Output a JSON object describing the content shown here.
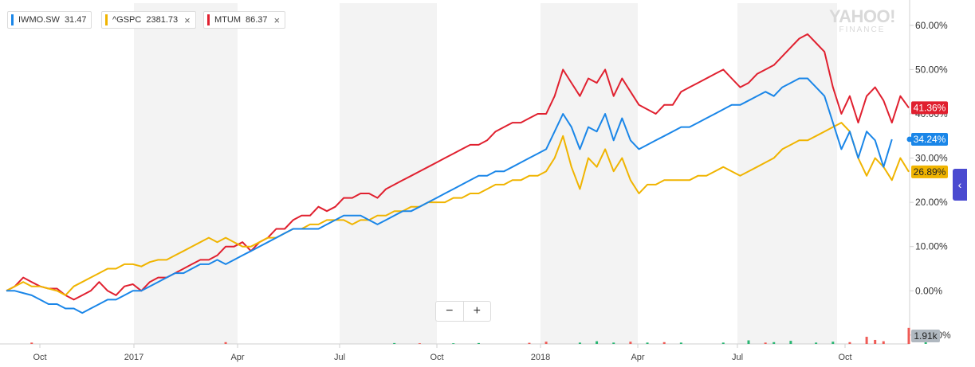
{
  "legend": [
    {
      "symbol": "IWMO.SW",
      "value": "31.47",
      "color": "#1a86e8",
      "closable": false
    },
    {
      "symbol": "^GSPC",
      "value": "2381.73",
      "color": "#f0b400",
      "closable": true
    },
    {
      "symbol": "MTUM",
      "value": "86.37",
      "color": "#e0202f",
      "closable": true
    }
  ],
  "watermark": {
    "line1": "YAHOO!",
    "line2": "FINANCE"
  },
  "zoom": {
    "minus": "−",
    "plus": "+"
  },
  "side_tab_icon": "chevron-left-icon",
  "side_tab_glyph": "‹",
  "chart_data": {
    "type": "line",
    "y_unit": "%",
    "ylim": [
      -12,
      65
    ],
    "y_ticks": [
      "60.00%",
      "50.00%",
      "40.00%",
      "30.00%",
      "20.00%",
      "10.00%",
      "0.00%",
      "-10.00%"
    ],
    "x_labels": [
      "Oct",
      "2017",
      "Apr",
      "Jul",
      "Oct",
      "2018",
      "Apr",
      "Jul",
      "Oct"
    ],
    "volume_label": "1.91k",
    "series": [
      {
        "name": "MTUM",
        "color": "#e0202f",
        "last_label": "41.36%",
        "values": [
          0,
          1,
          3,
          2,
          1,
          0.5,
          0.5,
          -1,
          -2,
          -1,
          0,
          2,
          0,
          -1,
          1,
          1.5,
          0,
          2,
          3,
          3,
          4,
          5,
          6,
          7,
          7,
          8,
          10,
          10,
          11,
          9,
          11,
          12,
          14,
          14,
          16,
          17,
          17,
          19,
          18,
          19,
          21,
          21,
          22,
          22,
          21,
          23,
          24,
          25,
          26,
          27,
          28,
          29,
          30,
          31,
          32,
          33,
          33,
          34,
          36,
          37,
          38,
          38,
          39,
          40,
          40,
          44,
          50,
          47,
          44,
          48,
          47,
          50,
          44,
          48,
          45,
          42,
          41,
          40,
          42,
          42,
          45,
          46,
          47,
          48,
          49,
          50,
          48,
          46,
          47,
          49,
          50,
          51,
          53,
          55,
          57,
          58,
          56,
          54,
          46,
          40,
          44,
          38,
          44,
          46,
          43,
          38,
          44,
          41.36
        ]
      },
      {
        "name": "^GSPC",
        "color": "#f0b400",
        "last_label": "26.89%",
        "values": [
          0,
          1,
          2,
          1,
          1,
          0.5,
          0,
          -1,
          1,
          2,
          3,
          4,
          5,
          5,
          6,
          6,
          5.5,
          6.5,
          7,
          7,
          8,
          9,
          10,
          11,
          12,
          11,
          12,
          11,
          10,
          10,
          11,
          12,
          12,
          13,
          14,
          14,
          15,
          15,
          16,
          16,
          16,
          15,
          16,
          16,
          17,
          17,
          18,
          18,
          19,
          19,
          20,
          20,
          20,
          21,
          21,
          22,
          22,
          23,
          24,
          24,
          25,
          25,
          26,
          26,
          27,
          30,
          35,
          28,
          23,
          30,
          28,
          32,
          27,
          30,
          25,
          22,
          24,
          24,
          25,
          25,
          25,
          25,
          26,
          26,
          27,
          28,
          27,
          26,
          27,
          28,
          29,
          30,
          32,
          33,
          34,
          34,
          35,
          36,
          37,
          38,
          36,
          30,
          26,
          30,
          28,
          25,
          30,
          26.89
        ]
      },
      {
        "name": "IWMO.SW",
        "color": "#1a86e8",
        "last_label": "34.24%",
        "values": [
          0,
          0,
          -0.5,
          -1,
          -2,
          -3,
          -3,
          -4,
          -4,
          -5,
          -4,
          -3,
          -2,
          -2,
          -1,
          0,
          0,
          1,
          2,
          3,
          4,
          4,
          5,
          6,
          6,
          7,
          6,
          7,
          8,
          9,
          10,
          11,
          12,
          13,
          14,
          14,
          14,
          14,
          15,
          16,
          17,
          17,
          17,
          16,
          15,
          16,
          17,
          18,
          18,
          19,
          20,
          21,
          22,
          23,
          24,
          25,
          26,
          26,
          27,
          27,
          28,
          29,
          30,
          31,
          32,
          36,
          40,
          37,
          32,
          37,
          36,
          40,
          34,
          39,
          34,
          32,
          33,
          34,
          35,
          36,
          37,
          37,
          38,
          39,
          40,
          41,
          42,
          42,
          43,
          44,
          45,
          44,
          46,
          47,
          48,
          48,
          46,
          44,
          38,
          32,
          36,
          30,
          36,
          34,
          28,
          34.24
        ]
      }
    ],
    "volume_bars": [
      {
        "i": 3,
        "h": 0.3,
        "c": "#ef5b56"
      },
      {
        "i": 26,
        "h": 0.4,
        "c": "#ef5b56"
      },
      {
        "i": 46,
        "h": 0.2,
        "c": "#2bb673"
      },
      {
        "i": 49,
        "h": 0.15,
        "c": "#ef5b56"
      },
      {
        "i": 53,
        "h": 0.15,
        "c": "#2bb673"
      },
      {
        "i": 56,
        "h": 0.2,
        "c": "#2bb673"
      },
      {
        "i": 62,
        "h": 0.25,
        "c": "#ef5b56"
      },
      {
        "i": 64,
        "h": 0.5,
        "c": "#ef5b56"
      },
      {
        "i": 68,
        "h": 0.3,
        "c": "#2bb673"
      },
      {
        "i": 70,
        "h": 0.6,
        "c": "#2bb673"
      },
      {
        "i": 72,
        "h": 0.3,
        "c": "#2bb673"
      },
      {
        "i": 74,
        "h": 0.5,
        "c": "#ef5b56"
      },
      {
        "i": 76,
        "h": 0.3,
        "c": "#2bb673"
      },
      {
        "i": 78,
        "h": 0.4,
        "c": "#ef5b56"
      },
      {
        "i": 80,
        "h": 0.3,
        "c": "#2bb673"
      },
      {
        "i": 85,
        "h": 0.3,
        "c": "#2bb673"
      },
      {
        "i": 88,
        "h": 0.8,
        "c": "#2bb673"
      },
      {
        "i": 90,
        "h": 0.3,
        "c": "#ef5b56"
      },
      {
        "i": 91,
        "h": 0.4,
        "c": "#2bb673"
      },
      {
        "i": 93,
        "h": 0.7,
        "c": "#2bb673"
      },
      {
        "i": 96,
        "h": 0.3,
        "c": "#2bb673"
      },
      {
        "i": 98,
        "h": 0.5,
        "c": "#2bb673"
      },
      {
        "i": 100,
        "h": 0.4,
        "c": "#ef5b56"
      },
      {
        "i": 102,
        "h": 1.6,
        "c": "#ef5b56"
      },
      {
        "i": 103,
        "h": 0.9,
        "c": "#ef5b56"
      },
      {
        "i": 104,
        "h": 0.6,
        "c": "#ef5b56"
      },
      {
        "i": 107,
        "h": 3.6,
        "c": "#ef5b56"
      },
      {
        "i": 109,
        "h": 0.8,
        "c": "#2bb673"
      }
    ]
  }
}
